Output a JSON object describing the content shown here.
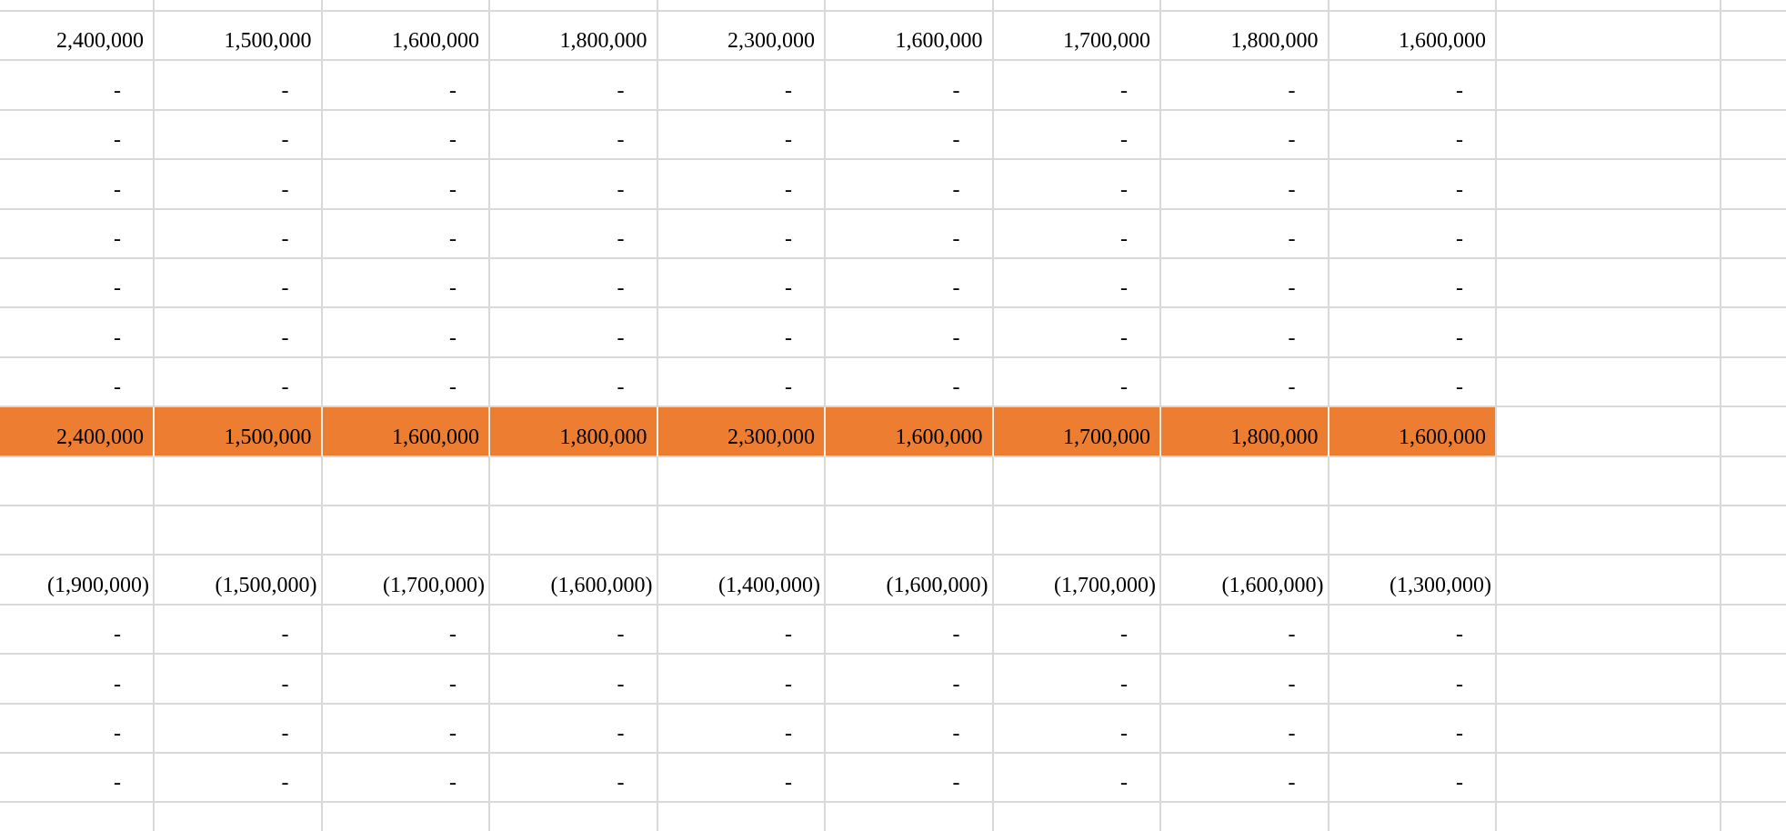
{
  "meta": {
    "app_type": "spreadsheet-grid-region",
    "visible_chrome": "none (cells area only)"
  },
  "styles": {
    "highlight_color": "#ED7D31",
    "gridline_color": "#D9D9D9",
    "text_color": "#000000",
    "background_color": "#FFFFFF"
  },
  "grid": {
    "dash_char": "-",
    "value_column_count": 9,
    "rows": [
      {
        "id": "row-sliver-top",
        "kind": "empty"
      },
      {
        "id": "row-total-top",
        "kind": "values",
        "highlight": false,
        "cells": [
          "2,400,000",
          "1,500,000",
          "1,600,000",
          "1,800,000",
          "2,300,000",
          "1,600,000",
          "1,700,000",
          "1,800,000",
          "1,600,000"
        ]
      },
      {
        "id": "row-zero-1",
        "kind": "dashes"
      },
      {
        "id": "row-zero-2",
        "kind": "dashes"
      },
      {
        "id": "row-zero-3",
        "kind": "dashes"
      },
      {
        "id": "row-zero-4",
        "kind": "dashes"
      },
      {
        "id": "row-zero-5",
        "kind": "dashes"
      },
      {
        "id": "row-zero-6",
        "kind": "dashes"
      },
      {
        "id": "row-zero-7",
        "kind": "dashes"
      },
      {
        "id": "row-total-highlighted",
        "kind": "values",
        "highlight": true,
        "cells": [
          "2,400,000",
          "1,500,000",
          "1,600,000",
          "1,800,000",
          "2,300,000",
          "1,600,000",
          "1,700,000",
          "1,800,000",
          "1,600,000"
        ]
      },
      {
        "id": "row-blank-1",
        "kind": "empty"
      },
      {
        "id": "row-blank-2",
        "kind": "empty"
      },
      {
        "id": "row-negative",
        "kind": "values",
        "highlight": false,
        "cells": [
          "(1,900,000)",
          "(1,500,000)",
          "(1,700,000)",
          "(1,600,000)",
          "(1,400,000)",
          "(1,600,000)",
          "(1,700,000)",
          "(1,600,000)",
          "(1,300,000)"
        ]
      },
      {
        "id": "row-zero-8",
        "kind": "dashes"
      },
      {
        "id": "row-zero-9",
        "kind": "dashes"
      },
      {
        "id": "row-zero-10",
        "kind": "dashes"
      },
      {
        "id": "row-zero-11",
        "kind": "dashes"
      },
      {
        "id": "row-sliver-bottom",
        "kind": "empty"
      }
    ]
  }
}
